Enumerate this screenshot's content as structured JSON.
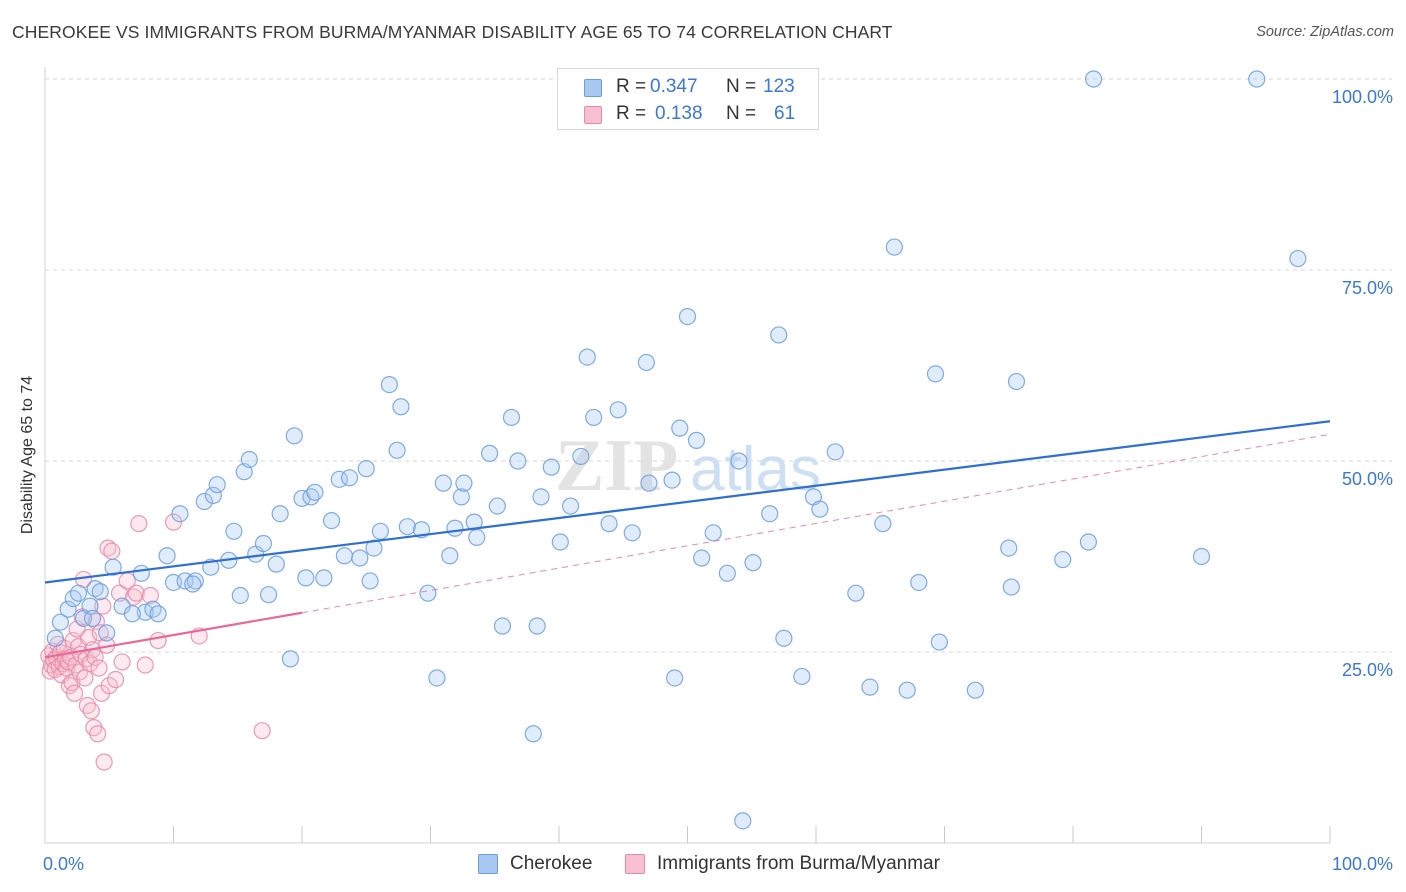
{
  "title": "CHEROKEE VS IMMIGRANTS FROM BURMA/MYANMAR DISABILITY AGE 65 TO 74 CORRELATION CHART",
  "source": "Source: ZipAtlas.com",
  "watermark": {
    "zip": "ZIP",
    "atlas": "atlas"
  },
  "legend_top": {
    "rows": [
      {
        "r_label": "R =",
        "r_value": "0.347",
        "n_label": "N =",
        "n_value": "123",
        "color": "#a9c8f0",
        "border": "#6a9de0"
      },
      {
        "r_label": "R =",
        "r_value": "0.138",
        "n_label": "N =",
        "n_value": "61",
        "color": "#f8bfd0",
        "border": "#e88aa8"
      }
    ]
  },
  "legend_bottom": {
    "items": [
      {
        "label": "Cherokee",
        "color": "#a9c8f0",
        "border": "#6a9de0"
      },
      {
        "label": "Immigrants from Burma/Myanmar",
        "color": "#f8bfd0",
        "border": "#e88aa8"
      }
    ]
  },
  "chart_data": {
    "type": "scatter",
    "title": "CHEROKEE VS IMMIGRANTS FROM BURMA/MYANMAR DISABILITY AGE 65 TO 74 CORRELATION CHART",
    "xlabel": "",
    "ylabel": "Disability Age 65 to 74",
    "xlim": [
      0,
      100
    ],
    "ylim": [
      0,
      100
    ],
    "x_tick_labels": [
      "0.0%",
      "100.0%"
    ],
    "y_tick_labels": [
      {
        "value": 25,
        "label": "25.0%"
      },
      {
        "value": 50,
        "label": "50.0%"
      },
      {
        "value": 75,
        "label": "75.0%"
      },
      {
        "value": 100,
        "label": "100.0%"
      }
    ],
    "grid": true,
    "colors": {
      "cherokee": "#6a9de0",
      "cherokee_fill": "#a9c8f0",
      "burma": "#e88aa8",
      "burma_fill": "#f8bfd0",
      "trend_blue": "#2e6fd0",
      "trend_pink": "#e8689a"
    },
    "series": [
      {
        "name": "Cherokee",
        "trend": {
          "x0": 0,
          "y0": 34.1,
          "x1": 100,
          "y1": 55.2,
          "style": "solid"
        },
        "points": [
          [
            0.8,
            26.8
          ],
          [
            1.2,
            28.9
          ],
          [
            1.8,
            30.6
          ],
          [
            2.2,
            32.0
          ],
          [
            2.6,
            32.7
          ],
          [
            3.0,
            29.4
          ],
          [
            3.5,
            31.0
          ],
          [
            3.9,
            33.3
          ],
          [
            4.3,
            32.9
          ],
          [
            4.8,
            27.5
          ],
          [
            5.3,
            36.1
          ],
          [
            6.0,
            31.0
          ],
          [
            7.5,
            35.3
          ],
          [
            7.8,
            30.2
          ],
          [
            8.4,
            30.6
          ],
          [
            8.8,
            30.0
          ],
          [
            9.5,
            37.6
          ],
          [
            10.0,
            34.1
          ],
          [
            10.5,
            43.1
          ],
          [
            10.9,
            34.3
          ],
          [
            11.7,
            34.3
          ],
          [
            12.4,
            44.7
          ],
          [
            12.9,
            36.1
          ],
          [
            13.1,
            45.5
          ],
          [
            13.4,
            46.9
          ],
          [
            14.3,
            37.0
          ],
          [
            14.7,
            40.8
          ],
          [
            15.2,
            32.4
          ],
          [
            15.5,
            48.6
          ],
          [
            15.9,
            50.2
          ],
          [
            16.4,
            37.8
          ],
          [
            17.0,
            39.2
          ],
          [
            17.4,
            32.5
          ],
          [
            18.0,
            36.5
          ],
          [
            18.3,
            43.1
          ],
          [
            19.1,
            24.1
          ],
          [
            19.4,
            53.3
          ],
          [
            20.0,
            45.1
          ],
          [
            20.3,
            34.7
          ],
          [
            20.7,
            45.3
          ],
          [
            21.0,
            45.9
          ],
          [
            21.7,
            34.7
          ],
          [
            22.3,
            42.2
          ],
          [
            22.9,
            47.6
          ],
          [
            23.3,
            37.6
          ],
          [
            23.7,
            47.8
          ],
          [
            24.5,
            37.3
          ],
          [
            25.0,
            49.0
          ],
          [
            25.3,
            34.3
          ],
          [
            25.6,
            38.6
          ],
          [
            26.1,
            40.8
          ],
          [
            26.8,
            60.0
          ],
          [
            27.4,
            51.4
          ],
          [
            27.7,
            57.1
          ],
          [
            28.2,
            41.4
          ],
          [
            29.3,
            41.0
          ],
          [
            29.8,
            32.7
          ],
          [
            30.5,
            21.6
          ],
          [
            31.0,
            47.1
          ],
          [
            31.5,
            37.6
          ],
          [
            31.9,
            41.2
          ],
          [
            32.4,
            45.3
          ],
          [
            32.6,
            47.1
          ],
          [
            33.4,
            42.0
          ],
          [
            33.6,
            40.0
          ],
          [
            34.6,
            51.0
          ],
          [
            35.2,
            44.1
          ],
          [
            35.6,
            28.4
          ],
          [
            36.3,
            55.7
          ],
          [
            36.8,
            50.0
          ],
          [
            38.0,
            14.3
          ],
          [
            38.3,
            28.4
          ],
          [
            38.6,
            45.3
          ],
          [
            39.4,
            49.2
          ],
          [
            40.1,
            39.4
          ],
          [
            40.9,
            44.1
          ],
          [
            41.7,
            50.6
          ],
          [
            42.2,
            63.6
          ],
          [
            42.7,
            55.7
          ],
          [
            43.9,
            41.8
          ],
          [
            44.6,
            56.7
          ],
          [
            45.7,
            40.6
          ],
          [
            46.8,
            62.9
          ],
          [
            47.0,
            47.1
          ],
          [
            48.8,
            47.5
          ],
          [
            49.0,
            21.6
          ],
          [
            49.4,
            54.3
          ],
          [
            50.0,
            68.9
          ],
          [
            50.7,
            52.7
          ],
          [
            51.1,
            37.3
          ],
          [
            52.0,
            40.6
          ],
          [
            53.1,
            35.3
          ],
          [
            54.0,
            50.0
          ],
          [
            55.1,
            36.7
          ],
          [
            56.4,
            43.1
          ],
          [
            57.1,
            66.5
          ],
          [
            57.5,
            26.8
          ],
          [
            58.9,
            21.8
          ],
          [
            59.8,
            45.3
          ],
          [
            60.3,
            43.7
          ],
          [
            61.5,
            51.2
          ],
          [
            63.1,
            32.7
          ],
          [
            64.2,
            20.4
          ],
          [
            65.2,
            41.8
          ],
          [
            66.1,
            78.0
          ],
          [
            67.1,
            20.0
          ],
          [
            68.0,
            34.1
          ],
          [
            69.3,
            61.4
          ],
          [
            69.6,
            26.3
          ],
          [
            72.4,
            20.0
          ],
          [
            75.0,
            38.6
          ],
          [
            75.2,
            33.5
          ],
          [
            75.6,
            60.4
          ],
          [
            79.2,
            37.1
          ],
          [
            81.2,
            39.4
          ],
          [
            81.6,
            100.0
          ],
          [
            90.0,
            37.5
          ],
          [
            94.3,
            100.0
          ],
          [
            97.5,
            76.5
          ],
          [
            54.3,
            2.9
          ],
          [
            6.8,
            30.0
          ],
          [
            11.5,
            33.9
          ],
          [
            3.7,
            29.4
          ]
        ]
      },
      {
        "name": "Immigrants from Burma/Myanmar",
        "trend": {
          "x0": 0,
          "y0": 24.3,
          "x1": 100,
          "y1": 53.5,
          "style": "solid-to-dashed",
          "solid_until_x": 20
        },
        "points": [
          [
            0.3,
            24.5
          ],
          [
            0.4,
            22.5
          ],
          [
            0.5,
            23.3
          ],
          [
            0.6,
            25.1
          ],
          [
            0.7,
            23.9
          ],
          [
            0.8,
            22.7
          ],
          [
            0.9,
            24.3
          ],
          [
            1.0,
            26.0
          ],
          [
            1.1,
            23.1
          ],
          [
            1.2,
            24.9
          ],
          [
            1.3,
            22.0
          ],
          [
            1.4,
            23.5
          ],
          [
            1.5,
            25.5
          ],
          [
            1.6,
            24.1
          ],
          [
            1.7,
            22.9
          ],
          [
            1.8,
            23.7
          ],
          [
            1.9,
            20.6
          ],
          [
            2.0,
            24.3
          ],
          [
            2.1,
            21.0
          ],
          [
            2.2,
            26.5
          ],
          [
            2.3,
            19.6
          ],
          [
            2.4,
            23.3
          ],
          [
            2.5,
            28.0
          ],
          [
            2.6,
            25.7
          ],
          [
            2.7,
            22.4
          ],
          [
            2.8,
            24.7
          ],
          [
            2.9,
            29.6
          ],
          [
            3.0,
            34.5
          ],
          [
            3.1,
            21.6
          ],
          [
            3.2,
            24.1
          ],
          [
            3.3,
            18.0
          ],
          [
            3.4,
            26.9
          ],
          [
            3.5,
            23.5
          ],
          [
            3.6,
            17.3
          ],
          [
            3.7,
            25.3
          ],
          [
            3.8,
            15.1
          ],
          [
            3.9,
            24.3
          ],
          [
            4.0,
            29.0
          ],
          [
            4.1,
            14.3
          ],
          [
            4.2,
            22.9
          ],
          [
            4.3,
            27.5
          ],
          [
            4.4,
            19.6
          ],
          [
            4.5,
            31.0
          ],
          [
            4.6,
            10.6
          ],
          [
            4.8,
            25.9
          ],
          [
            4.9,
            38.6
          ],
          [
            5.0,
            20.6
          ],
          [
            5.2,
            38.2
          ],
          [
            5.5,
            21.4
          ],
          [
            5.8,
            32.7
          ],
          [
            6.0,
            23.7
          ],
          [
            6.4,
            34.3
          ],
          [
            6.9,
            32.2
          ],
          [
            7.1,
            32.7
          ],
          [
            7.3,
            41.8
          ],
          [
            7.8,
            23.3
          ],
          [
            8.2,
            32.4
          ],
          [
            8.8,
            26.5
          ],
          [
            10.0,
            42.0
          ],
          [
            12.0,
            27.1
          ],
          [
            16.9,
            14.7
          ]
        ]
      }
    ]
  }
}
